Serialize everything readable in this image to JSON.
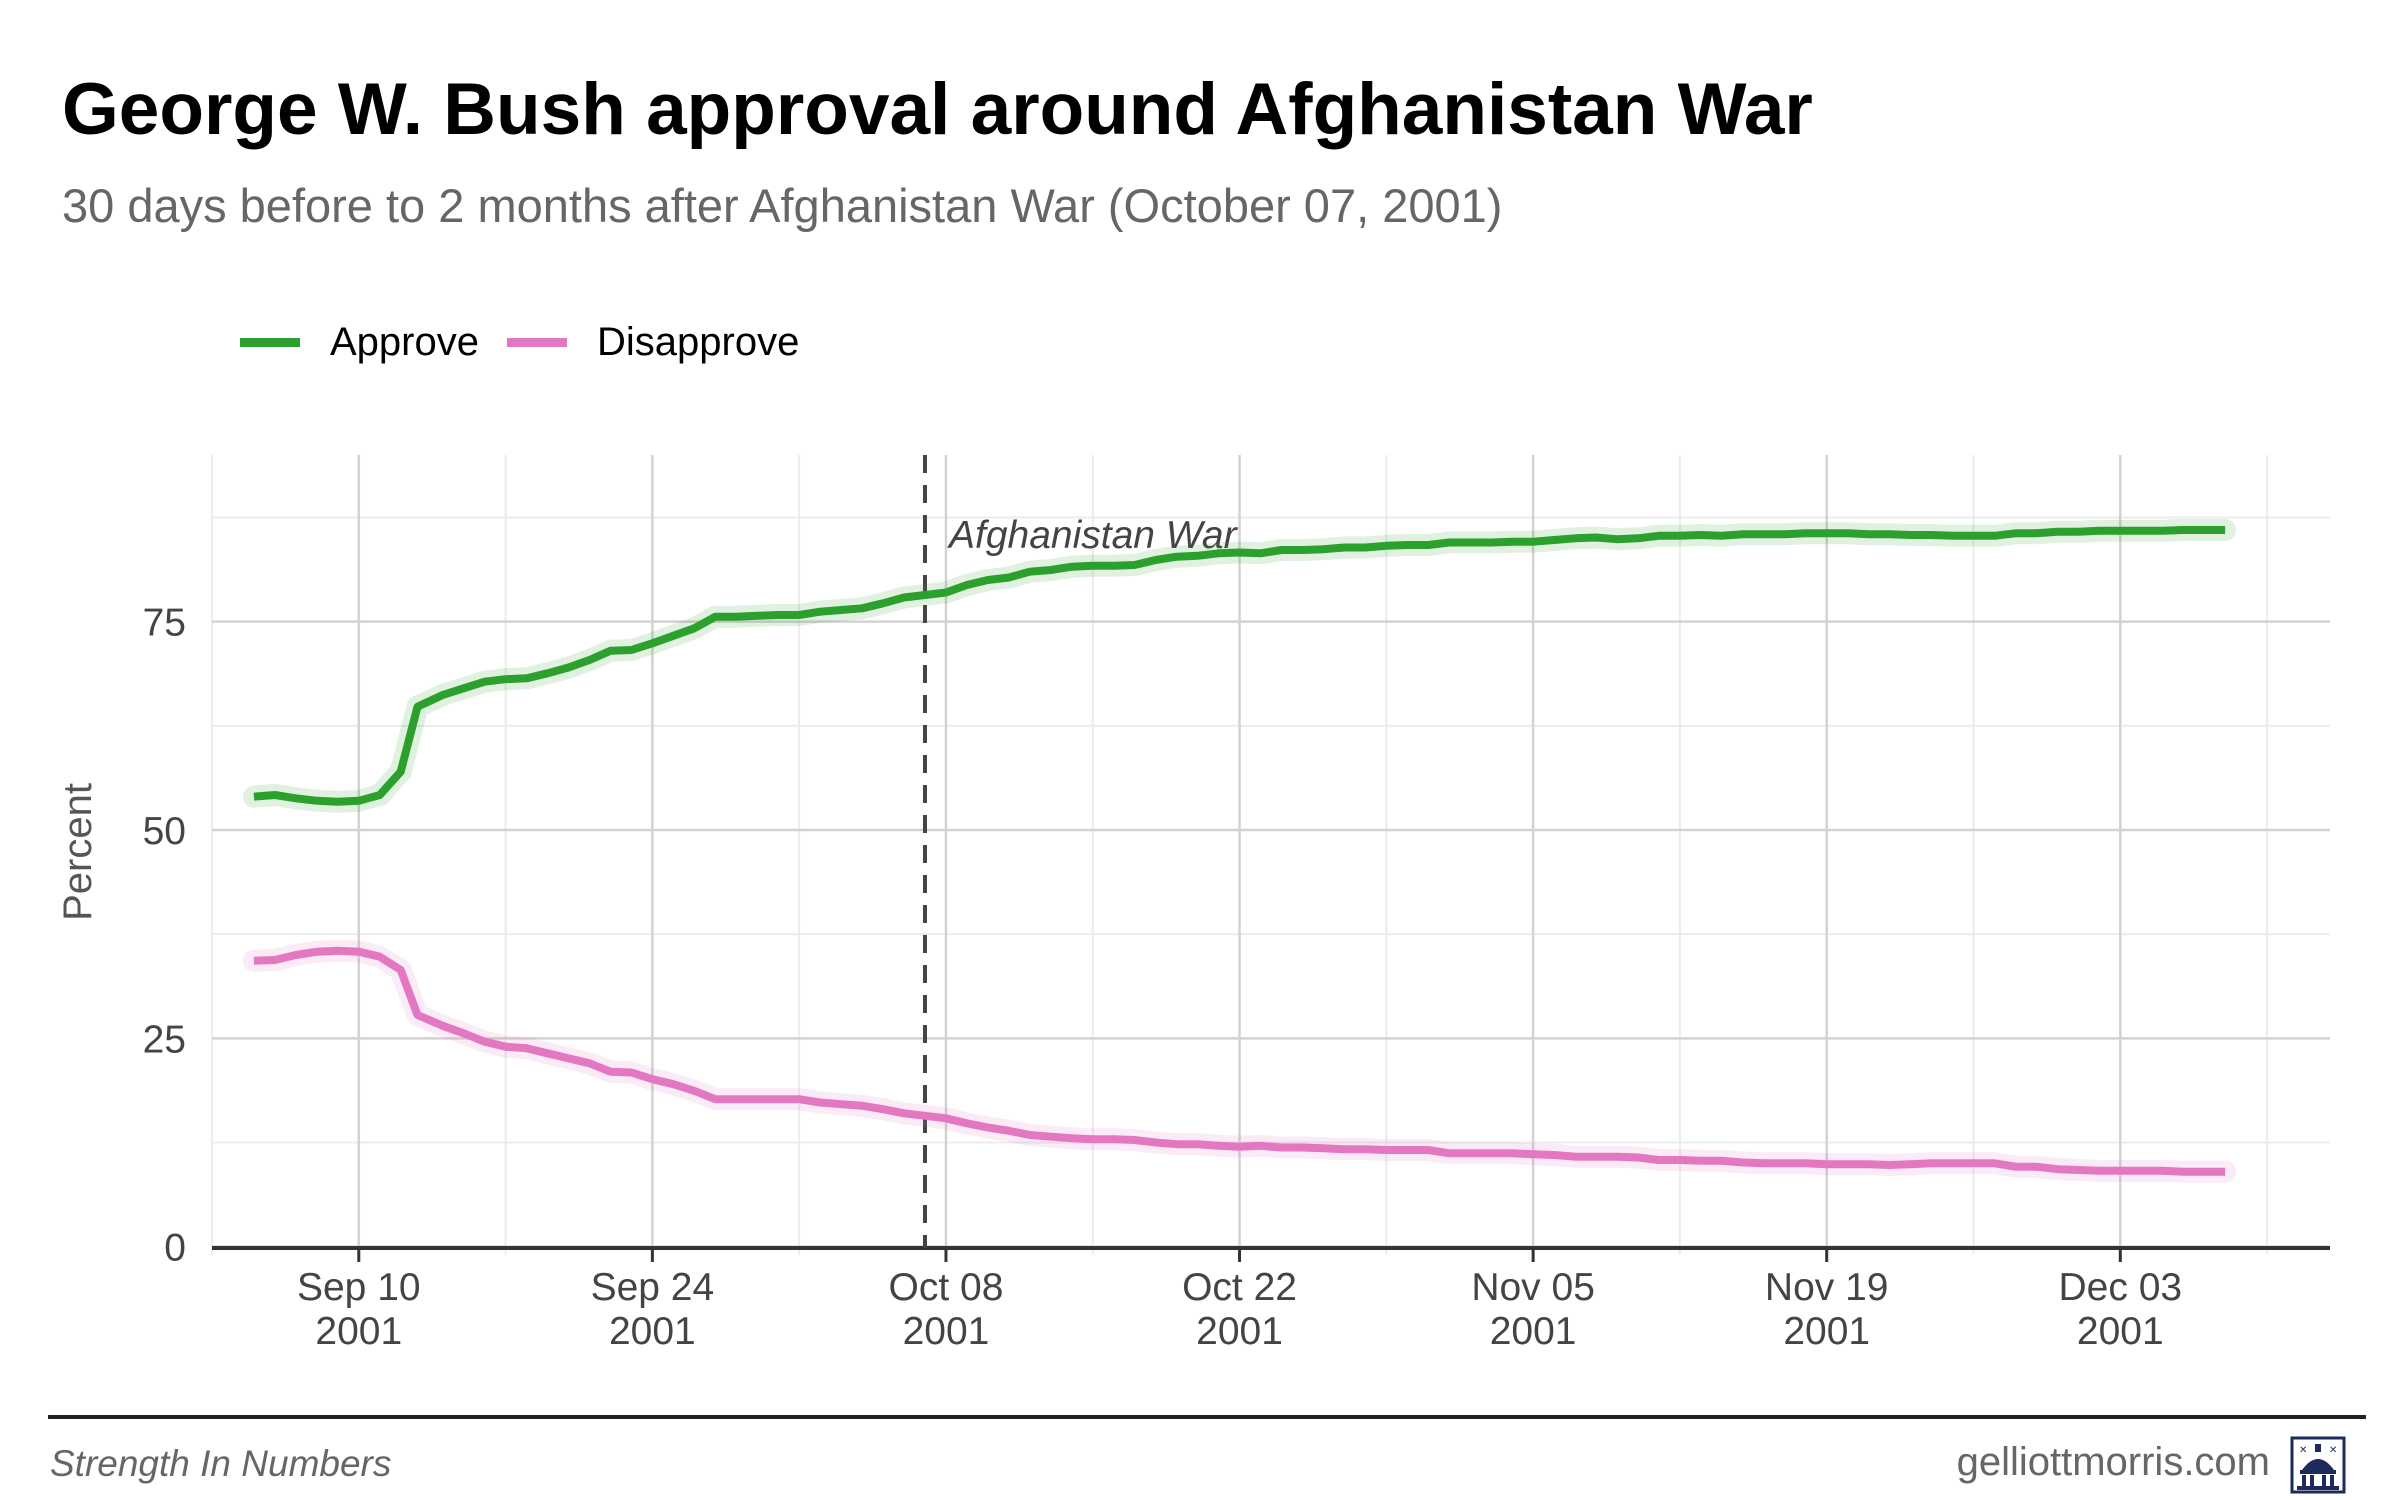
{
  "title": "George W. Bush approval around Afghanistan War",
  "subtitle": "30 days before to 2 months after Afghanistan War (October 07, 2001)",
  "legend": {
    "items": [
      {
        "label": "Approve",
        "color": "#2ca02c"
      },
      {
        "label": "Disapprove",
        "color": "#e377c2"
      }
    ]
  },
  "footer": {
    "left": "Strength In Numbers",
    "right": "gelliottmorris.com",
    "logo_icon": "capitol-dome-icon"
  },
  "chart_data": {
    "type": "line",
    "title": "George W. Bush approval around Afghanistan War",
    "subtitle": "30 days before to 2 months after Afghanistan War (October 07, 2001)",
    "xlabel": "",
    "ylabel": "Percent",
    "xlim_days": [
      -5,
      96
    ],
    "ylim": [
      -1,
      95
    ],
    "yticks": [
      0,
      25,
      50,
      75
    ],
    "xticks": [
      {
        "day": 2,
        "label": [
          "Sep 10",
          "2001"
        ]
      },
      {
        "day": 16,
        "label": [
          "Sep 24",
          "2001"
        ]
      },
      {
        "day": 30,
        "label": [
          "Oct 08",
          "2001"
        ]
      },
      {
        "day": 44,
        "label": [
          "Oct 22",
          "2001"
        ]
      },
      {
        "day": 58,
        "label": [
          "Nov 05",
          "2001"
        ]
      },
      {
        "day": 72,
        "label": [
          "Nov 19",
          "2001"
        ]
      },
      {
        "day": 86,
        "label": [
          "Dec 03",
          "2001"
        ]
      }
    ],
    "x_origin_date": "2001-09-08",
    "event": {
      "day": 29,
      "label": "Afghanistan War",
      "date": "October 07, 2001"
    },
    "grid": true,
    "legend_position": "top-left",
    "series": [
      {
        "name": "Approve",
        "color": "#2ca02c",
        "points": [
          [
            -3,
            54
          ],
          [
            -2,
            54.2
          ],
          [
            -1,
            53.8
          ],
          [
            0,
            53.5
          ],
          [
            1,
            53.4
          ],
          [
            2,
            53.5
          ],
          [
            3,
            54.2
          ],
          [
            4,
            57
          ],
          [
            4.8,
            64.8
          ],
          [
            6,
            66.2
          ],
          [
            7,
            67
          ],
          [
            8,
            67.8
          ],
          [
            9,
            68.1
          ],
          [
            10,
            68.2
          ],
          [
            11,
            68.8
          ],
          [
            12,
            69.5
          ],
          [
            13,
            70.4
          ],
          [
            14,
            71.5
          ],
          [
            15,
            71.6
          ],
          [
            16,
            72.4
          ],
          [
            17,
            73.3
          ],
          [
            18,
            74.2
          ],
          [
            19,
            75.6
          ],
          [
            20,
            75.6
          ],
          [
            21,
            75.7
          ],
          [
            22,
            75.8
          ],
          [
            23,
            75.8
          ],
          [
            24,
            76.2
          ],
          [
            25,
            76.4
          ],
          [
            26,
            76.6
          ],
          [
            27,
            77.2
          ],
          [
            28,
            77.9
          ],
          [
            29,
            78.2
          ],
          [
            30,
            78.5
          ],
          [
            31,
            79.4
          ],
          [
            32,
            80
          ],
          [
            33,
            80.3
          ],
          [
            34,
            81
          ],
          [
            35,
            81.2
          ],
          [
            36,
            81.6
          ],
          [
            37,
            81.7
          ],
          [
            38,
            81.7
          ],
          [
            39,
            81.8
          ],
          [
            40,
            82.4
          ],
          [
            41,
            82.8
          ],
          [
            42,
            82.9
          ],
          [
            43,
            83.2
          ],
          [
            44,
            83.3
          ],
          [
            45,
            83.2
          ],
          [
            46,
            83.6
          ],
          [
            47,
            83.6
          ],
          [
            48,
            83.7
          ],
          [
            49,
            83.9
          ],
          [
            50,
            83.9
          ],
          [
            51,
            84.1
          ],
          [
            52,
            84.2
          ],
          [
            53,
            84.2
          ],
          [
            54,
            84.5
          ],
          [
            55,
            84.5
          ],
          [
            56,
            84.5
          ],
          [
            57,
            84.6
          ],
          [
            58,
            84.6
          ],
          [
            59,
            84.8
          ],
          [
            60,
            85
          ],
          [
            61,
            85.1
          ],
          [
            62,
            84.9
          ],
          [
            63,
            85
          ],
          [
            64,
            85.3
          ],
          [
            65,
            85.3
          ],
          [
            66,
            85.4
          ],
          [
            67,
            85.3
          ],
          [
            68,
            85.5
          ],
          [
            69,
            85.5
          ],
          [
            70,
            85.5
          ],
          [
            71,
            85.6
          ],
          [
            72,
            85.6
          ],
          [
            73,
            85.6
          ],
          [
            74,
            85.5
          ],
          [
            75,
            85.5
          ],
          [
            76,
            85.4
          ],
          [
            77,
            85.4
          ],
          [
            78,
            85.3
          ],
          [
            79,
            85.3
          ],
          [
            80,
            85.3
          ],
          [
            81,
            85.6
          ],
          [
            82,
            85.6
          ],
          [
            83,
            85.8
          ],
          [
            84,
            85.8
          ],
          [
            85,
            85.9
          ],
          [
            86,
            85.9
          ],
          [
            87,
            85.9
          ],
          [
            88,
            85.9
          ],
          [
            89,
            86
          ],
          [
            90,
            86
          ],
          [
            91,
            86
          ]
        ]
      },
      {
        "name": "Disapprove",
        "color": "#e377c2",
        "points": [
          [
            -3,
            34.3
          ],
          [
            -2,
            34.4
          ],
          [
            -1,
            35
          ],
          [
            0,
            35.4
          ],
          [
            1,
            35.5
          ],
          [
            2,
            35.4
          ],
          [
            3,
            34.8
          ],
          [
            4,
            33.2
          ],
          [
            4.8,
            27.8
          ],
          [
            6,
            26.5
          ],
          [
            7,
            25.6
          ],
          [
            8,
            24.6
          ],
          [
            9,
            24
          ],
          [
            10,
            23.8
          ],
          [
            11,
            23.2
          ],
          [
            12,
            22.6
          ],
          [
            13,
            22
          ],
          [
            14,
            21
          ],
          [
            15,
            20.9
          ],
          [
            16,
            20.1
          ],
          [
            17,
            19.5
          ],
          [
            18,
            18.7
          ],
          [
            19,
            17.7
          ],
          [
            20,
            17.7
          ],
          [
            21,
            17.7
          ],
          [
            22,
            17.7
          ],
          [
            23,
            17.7
          ],
          [
            24,
            17.3
          ],
          [
            25,
            17.1
          ],
          [
            26,
            16.9
          ],
          [
            27,
            16.5
          ],
          [
            28,
            16
          ],
          [
            29,
            15.7
          ],
          [
            30,
            15.4
          ],
          [
            31,
            14.8
          ],
          [
            32,
            14.3
          ],
          [
            33,
            13.9
          ],
          [
            34,
            13.4
          ],
          [
            35,
            13.2
          ],
          [
            36,
            13
          ],
          [
            37,
            12.9
          ],
          [
            38,
            12.9
          ],
          [
            39,
            12.8
          ],
          [
            40,
            12.5
          ],
          [
            41,
            12.3
          ],
          [
            42,
            12.3
          ],
          [
            43,
            12.1
          ],
          [
            44,
            12
          ],
          [
            45,
            12.1
          ],
          [
            46,
            11.9
          ],
          [
            47,
            11.9
          ],
          [
            48,
            11.8
          ],
          [
            49,
            11.7
          ],
          [
            50,
            11.7
          ],
          [
            51,
            11.6
          ],
          [
            52,
            11.6
          ],
          [
            53,
            11.6
          ],
          [
            54,
            11.2
          ],
          [
            55,
            11.2
          ],
          [
            56,
            11.2
          ],
          [
            57,
            11.2
          ],
          [
            58,
            11.1
          ],
          [
            59,
            11
          ],
          [
            60,
            10.8
          ],
          [
            61,
            10.8
          ],
          [
            62,
            10.8
          ],
          [
            63,
            10.7
          ],
          [
            64,
            10.4
          ],
          [
            65,
            10.4
          ],
          [
            66,
            10.3
          ],
          [
            67,
            10.3
          ],
          [
            68,
            10.1
          ],
          [
            69,
            10
          ],
          [
            70,
            10
          ],
          [
            71,
            10
          ],
          [
            72,
            9.9
          ],
          [
            73,
            9.9
          ],
          [
            74,
            9.9
          ],
          [
            75,
            9.8
          ],
          [
            76,
            9.9
          ],
          [
            77,
            10
          ],
          [
            78,
            10
          ],
          [
            79,
            10
          ],
          [
            80,
            10
          ],
          [
            81,
            9.6
          ],
          [
            82,
            9.6
          ],
          [
            83,
            9.3
          ],
          [
            84,
            9.2
          ],
          [
            85,
            9.1
          ],
          [
            86,
            9.1
          ],
          [
            87,
            9.1
          ],
          [
            88,
            9.1
          ],
          [
            89,
            9
          ],
          [
            90,
            9
          ],
          [
            91,
            9
          ]
        ]
      }
    ]
  }
}
